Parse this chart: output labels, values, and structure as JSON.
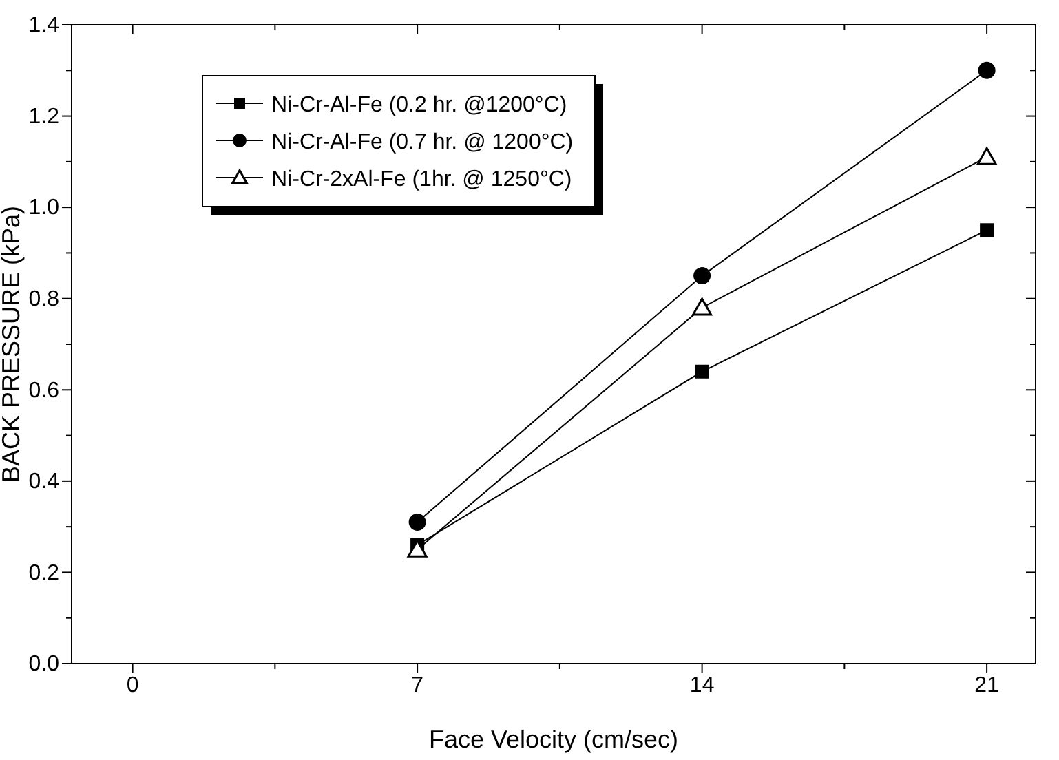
{
  "chart_data": {
    "type": "line",
    "xlabel": "Face Velocity (cm/sec)",
    "ylabel": "BACK PRESSURE (kPa)",
    "x": [
      7,
      14,
      21
    ],
    "series": [
      {
        "name": "Ni-Cr-Al-Fe (0.2 hr. @1200°C)",
        "color": "#000000",
        "marker": "square",
        "values": [
          0.26,
          0.64,
          0.95
        ]
      },
      {
        "name": "Ni-Cr-Al-Fe (0.7 hr. @ 1200°C)",
        "color": "#000000",
        "marker": "circle",
        "values": [
          0.31,
          0.85,
          1.3
        ]
      },
      {
        "name": "Ni-Cr-2xAl-Fe (1hr. @ 1250°C)",
        "color": "#000000",
        "marker": "triangle",
        "values": [
          0.25,
          0.78,
          1.11
        ]
      }
    ],
    "xlim": [
      -1.5,
      22.2
    ],
    "xticks": [
      0,
      {
        "value": 3.5,
        "label": null
      },
      7,
      {
        "value": 10.5,
        "label": null
      },
      14,
      {
        "value": 17.5,
        "label": null
      },
      21
    ],
    "ylim": [
      0,
      1.4
    ],
    "yticks": [
      {
        "value": 0,
        "label": "0.0"
      },
      {
        "value": 0.1,
        "label": null
      },
      0.2,
      {
        "value": 0.3,
        "label": null
      },
      0.4,
      {
        "value": 0.5,
        "label": null
      },
      0.6,
      {
        "value": 0.7,
        "label": null
      },
      0.8,
      {
        "value": 0.9,
        "label": null
      },
      {
        "value": 1.0,
        "label": "1.0"
      },
      {
        "value": 1.1,
        "label": null
      },
      1.2,
      {
        "value": 1.3,
        "label": null
      },
      1.4
    ],
    "legend": "top left",
    "grid": false,
    "line_style": "solid"
  }
}
